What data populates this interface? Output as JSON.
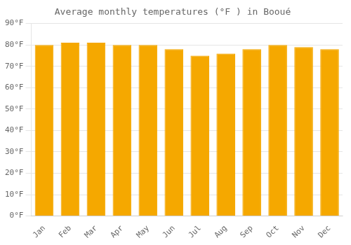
{
  "chart_data": {
    "type": "bar",
    "title": "Average monthly temperatures (°F ) in Booué",
    "categories": [
      "Jan",
      "Feb",
      "Mar",
      "Apr",
      "May",
      "Jun",
      "Jul",
      "Aug",
      "Sep",
      "Oct",
      "Nov",
      "Dec"
    ],
    "values": [
      80,
      81,
      81,
      80,
      80,
      78,
      75,
      76,
      78,
      80,
      79,
      78
    ],
    "color": "#F5A800",
    "ylim": [
      0,
      90
    ],
    "yticks": [
      {
        "value": 0,
        "label": "0°F"
      },
      {
        "value": 10,
        "label": "10°F"
      },
      {
        "value": 20,
        "label": "20°F"
      },
      {
        "value": 30,
        "label": "30°F"
      },
      {
        "value": 40,
        "label": "40°F"
      },
      {
        "value": 50,
        "label": "50°F"
      },
      {
        "value": 60,
        "label": "60°F"
      },
      {
        "value": 70,
        "label": "70°F"
      },
      {
        "value": 80,
        "label": "80°F"
      },
      {
        "value": 90,
        "label": "90°F"
      }
    ],
    "grid": true
  }
}
